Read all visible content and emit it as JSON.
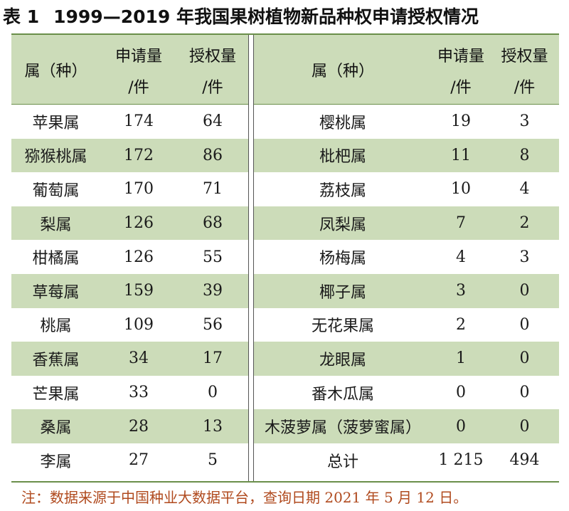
{
  "caption": {
    "label": "表 1",
    "title": "1999—2019 年我国果树植物新品种权申请授权情况"
  },
  "headers": {
    "genus": "属（种）",
    "applications": "申请量",
    "applications_unit": "/件",
    "grants": "授权量",
    "grants_unit": "/件"
  },
  "left_rows": [
    {
      "genus": "苹果属",
      "applications": "174",
      "grants": "64"
    },
    {
      "genus": "猕猴桃属",
      "applications": "172",
      "grants": "86"
    },
    {
      "genus": "葡萄属",
      "applications": "170",
      "grants": "71"
    },
    {
      "genus": "梨属",
      "applications": "126",
      "grants": "68"
    },
    {
      "genus": "柑橘属",
      "applications": "126",
      "grants": "55"
    },
    {
      "genus": "草莓属",
      "applications": "159",
      "grants": "39"
    },
    {
      "genus": "桃属",
      "applications": "109",
      "grants": "56"
    },
    {
      "genus": "香蕉属",
      "applications": "34",
      "grants": "17"
    },
    {
      "genus": "芒果属",
      "applications": "33",
      "grants": "0"
    },
    {
      "genus": "桑属",
      "applications": "28",
      "grants": "13"
    },
    {
      "genus": "李属",
      "applications": "27",
      "grants": "5"
    }
  ],
  "right_rows": [
    {
      "genus": "樱桃属",
      "applications": "19",
      "grants": "3"
    },
    {
      "genus": "枇杷属",
      "applications": "11",
      "grants": "8"
    },
    {
      "genus": "荔枝属",
      "applications": "10",
      "grants": "4"
    },
    {
      "genus": "凤梨属",
      "applications": "7",
      "grants": "2"
    },
    {
      "genus": "杨梅属",
      "applications": "4",
      "grants": "3"
    },
    {
      "genus": "椰子属",
      "applications": "3",
      "grants": "0"
    },
    {
      "genus": "无花果属",
      "applications": "2",
      "grants": "0"
    },
    {
      "genus": "龙眼属",
      "applications": "1",
      "grants": "0"
    },
    {
      "genus": "番木瓜属",
      "applications": "0",
      "grants": "0"
    },
    {
      "genus": "木菠萝属（菠萝蜜属）",
      "applications": "0",
      "grants": "0"
    },
    {
      "genus": "总计",
      "applications": "1 215",
      "grants": "494"
    }
  ],
  "note": "注：数据来源于中国种业大数据平台，查询日期 2021 年 5 月 12 日。",
  "colors": {
    "band": "#ccdcb9",
    "rule": "#6a8f4a",
    "note": "#b04a1e"
  }
}
